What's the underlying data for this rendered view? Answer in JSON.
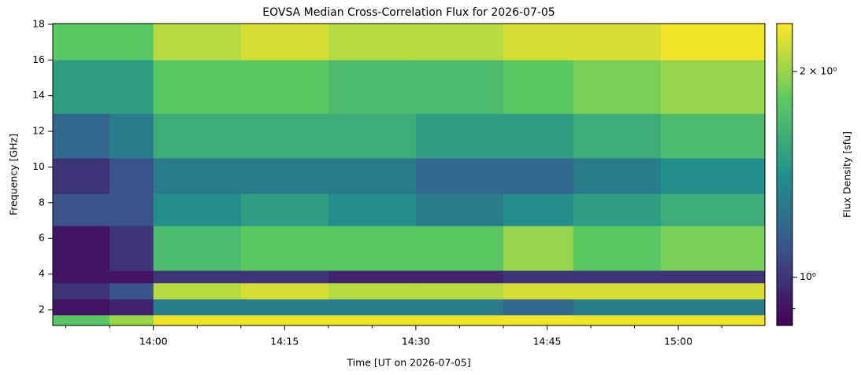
{
  "chart_data": {
    "type": "heatmap",
    "title": "EOVSA Median Cross-Correlation Flux for 2026-07-05",
    "x_label": "Time [UT on 2026-07-05]",
    "y_label": "Frequency [GHz]",
    "colorbar_label": "Flux Density [sfu]",
    "colormap": "viridis",
    "color_scale": "log",
    "clim": [
      0.85,
      2.35
    ],
    "cticks": [
      {
        "value": 1,
        "label": "10⁰"
      },
      {
        "value": 2,
        "label": "2 × 10⁰"
      }
    ],
    "cminorticks": [
      0.9
    ],
    "xlim": [
      828.5,
      909.9
    ],
    "xticks": [
      {
        "value": 840,
        "label": "14:00"
      },
      {
        "value": 855,
        "label": "14:15"
      },
      {
        "value": 870,
        "label": "14:30"
      },
      {
        "value": 885,
        "label": "14:45"
      },
      {
        "value": 900,
        "label": "15:00"
      }
    ],
    "xminorticks": [
      830,
      835,
      845,
      850,
      860,
      865,
      875,
      880,
      890,
      895,
      905
    ],
    "ylim": [
      1.12,
      18.04
    ],
    "yticks": [
      2,
      4,
      6,
      8,
      10,
      12,
      14,
      16,
      18
    ],
    "x": [
      828.5,
      835,
      840,
      850,
      860,
      870,
      880,
      888,
      898,
      909.9
    ],
    "y": [
      1.12,
      1.7,
      2.6,
      3.5,
      4.2,
      6.7,
      8.5,
      10.5,
      13,
      16,
      18.04
    ],
    "values": [
      [
        1.8,
        2.0,
        2.3,
        2.3,
        2.3,
        2.3,
        2.3,
        2.3,
        2.3
      ],
      [
        0.9,
        0.95,
        1.3,
        1.3,
        1.3,
        1.3,
        1.2,
        1.3,
        1.3
      ],
      [
        1.0,
        1.1,
        2.1,
        2.2,
        2.1,
        2.1,
        2.2,
        2.2,
        2.2
      ],
      [
        0.9,
        0.9,
        1.0,
        1.0,
        0.95,
        0.95,
        1.0,
        1.0,
        1.0
      ],
      [
        0.9,
        1.0,
        1.7,
        1.8,
        1.8,
        1.8,
        2.0,
        1.8,
        1.9
      ],
      [
        1.1,
        1.1,
        1.4,
        1.5,
        1.4,
        1.3,
        1.4,
        1.5,
        1.6
      ],
      [
        1.0,
        1.1,
        1.3,
        1.3,
        1.3,
        1.2,
        1.2,
        1.3,
        1.4
      ],
      [
        1.2,
        1.3,
        1.6,
        1.6,
        1.6,
        1.5,
        1.5,
        1.6,
        1.7
      ],
      [
        1.5,
        1.5,
        1.8,
        1.8,
        1.7,
        1.7,
        1.8,
        1.9,
        2.0
      ],
      [
        1.8,
        1.8,
        2.1,
        2.2,
        2.1,
        2.1,
        2.2,
        2.2,
        2.3
      ]
    ]
  }
}
